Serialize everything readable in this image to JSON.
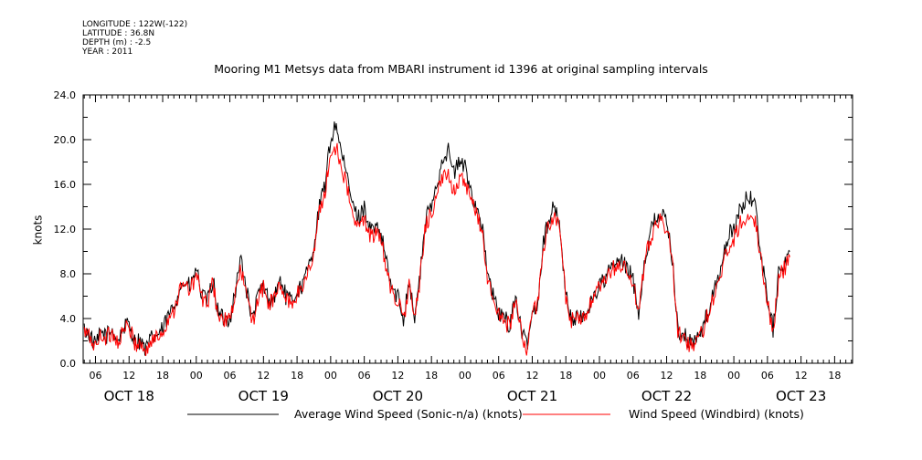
{
  "header": {
    "meta_lines": [
      "LONGITUDE : 122W(-122)",
      "LATITUDE : 36.8N",
      "DEPTH (m) : -2.5",
      "YEAR : 2011"
    ],
    "title": "Mooring M1 Metsys data from MBARI instrument id 1396 at original sampling intervals"
  },
  "chart_data": {
    "type": "line",
    "title": "Mooring M1 Metsys data from MBARI instrument id 1396 at original sampling intervals",
    "ylabel": "knots",
    "xlabel": "",
    "ylim": [
      0,
      24
    ],
    "y_ticks": [
      "0.0",
      "4.0",
      "8.0",
      "12.0",
      "16.0",
      "20.0",
      "24.0"
    ],
    "x_unit": "hours since OCT 18 00:00",
    "xlim": [
      3.8,
      141.2
    ],
    "x_tick_labels": [
      {
        "x": 6,
        "label": "06"
      },
      {
        "x": 12,
        "label": "12"
      },
      {
        "x": 18,
        "label": "18"
      },
      {
        "x": 24,
        "label": "00"
      },
      {
        "x": 30,
        "label": "06"
      },
      {
        "x": 36,
        "label": "12"
      },
      {
        "x": 42,
        "label": "18"
      },
      {
        "x": 48,
        "label": "00"
      },
      {
        "x": 54,
        "label": "06"
      },
      {
        "x": 60,
        "label": "12"
      },
      {
        "x": 66,
        "label": "18"
      },
      {
        "x": 72,
        "label": "00"
      },
      {
        "x": 78,
        "label": "06"
      },
      {
        "x": 84,
        "label": "12"
      },
      {
        "x": 90,
        "label": "18"
      },
      {
        "x": 96,
        "label": "00"
      },
      {
        "x": 102,
        "label": "06"
      },
      {
        "x": 108,
        "label": "12"
      },
      {
        "x": 114,
        "label": "18"
      },
      {
        "x": 120,
        "label": "00"
      },
      {
        "x": 126,
        "label": "06"
      },
      {
        "x": 132,
        "label": "12"
      },
      {
        "x": 138,
        "label": "18"
      }
    ],
    "date_labels": [
      {
        "x": 12,
        "label": "OCT 18"
      },
      {
        "x": 36,
        "label": "OCT 19"
      },
      {
        "x": 60,
        "label": "OCT 20"
      },
      {
        "x": 84,
        "label": "OCT 21"
      },
      {
        "x": 108,
        "label": "OCT 22"
      },
      {
        "x": 132,
        "label": "OCT 23"
      }
    ],
    "series": [
      {
        "name": "Average Wind Speed (Sonic-n/a) (knots)",
        "color": "#000000",
        "points": [
          [
            4,
            3.0
          ],
          [
            5,
            2.5
          ],
          [
            6,
            1.5
          ],
          [
            7,
            2.8
          ],
          [
            8,
            2.5
          ],
          [
            9,
            3.0
          ],
          [
            10,
            2.0
          ],
          [
            11,
            3.2
          ],
          [
            12,
            3.5
          ],
          [
            13,
            2.0
          ],
          [
            14,
            2.0
          ],
          [
            15,
            1.2
          ],
          [
            16,
            2.2
          ],
          [
            17,
            2.5
          ],
          [
            18,
            3.0
          ],
          [
            19,
            4.2
          ],
          [
            20,
            5.0
          ],
          [
            21,
            6.8
          ],
          [
            22,
            7.2
          ],
          [
            23,
            6.8
          ],
          [
            24,
            8.5
          ],
          [
            25,
            6.0
          ],
          [
            26,
            5.5
          ],
          [
            27,
            7.5
          ],
          [
            28,
            4.2
          ],
          [
            29,
            4.0
          ],
          [
            30,
            4.0
          ],
          [
            31,
            6.5
          ],
          [
            32,
            9.5
          ],
          [
            33,
            6.5
          ],
          [
            34,
            3.8
          ],
          [
            35,
            6.0
          ],
          [
            36,
            7.0
          ],
          [
            37,
            5.5
          ],
          [
            38,
            6.0
          ],
          [
            39,
            7.5
          ],
          [
            40,
            6.0
          ],
          [
            41,
            5.5
          ],
          [
            42,
            6.5
          ],
          [
            43,
            7.0
          ],
          [
            44,
            8.5
          ],
          [
            45,
            10.5
          ],
          [
            46,
            14.0
          ],
          [
            47,
            16.0
          ],
          [
            48,
            20.0
          ],
          [
            49,
            21.5
          ],
          [
            50,
            18.5
          ],
          [
            51,
            16.5
          ],
          [
            52,
            14.0
          ],
          [
            53,
            13.0
          ],
          [
            54,
            14.0
          ],
          [
            55,
            12.0
          ],
          [
            56,
            12.0
          ],
          [
            57,
            11.5
          ],
          [
            58,
            9.0
          ],
          [
            59,
            6.5
          ],
          [
            60,
            6.0
          ],
          [
            61,
            4.0
          ],
          [
            62,
            7.5
          ],
          [
            63,
            4.0
          ],
          [
            64,
            8.0
          ],
          [
            65,
            13.0
          ],
          [
            66,
            14.0
          ],
          [
            67,
            16.0
          ],
          [
            68,
            18.5
          ],
          [
            69,
            19.0
          ],
          [
            70,
            17.0
          ],
          [
            71,
            18.0
          ],
          [
            72,
            17.5
          ],
          [
            73,
            15.5
          ],
          [
            74,
            14.0
          ],
          [
            75,
            12.5
          ],
          [
            76,
            8.0
          ],
          [
            77,
            6.0
          ],
          [
            78,
            4.5
          ],
          [
            79,
            4.0
          ],
          [
            80,
            3.5
          ],
          [
            81,
            6.0
          ],
          [
            82,
            3.0
          ],
          [
            83,
            1.5
          ],
          [
            84,
            4.5
          ],
          [
            85,
            5.5
          ],
          [
            86,
            11.0
          ],
          [
            87,
            13.0
          ],
          [
            88,
            14.0
          ],
          [
            89,
            12.0
          ],
          [
            90,
            6.0
          ],
          [
            91,
            4.0
          ],
          [
            92,
            4.0
          ],
          [
            93,
            4.0
          ],
          [
            94,
            5.0
          ],
          [
            95,
            6.0
          ],
          [
            96,
            7.0
          ],
          [
            97,
            7.5
          ],
          [
            98,
            8.5
          ],
          [
            99,
            9.0
          ],
          [
            100,
            9.0
          ],
          [
            101,
            8.5
          ],
          [
            102,
            7.5
          ],
          [
            103,
            4.5
          ],
          [
            104,
            9.0
          ],
          [
            105,
            11.5
          ],
          [
            106,
            13.0
          ],
          [
            107,
            13.5
          ],
          [
            108,
            12.5
          ],
          [
            109,
            9.5
          ],
          [
            110,
            3.0
          ],
          [
            111,
            2.5
          ],
          [
            112,
            2.0
          ],
          [
            113,
            2.0
          ],
          [
            114,
            2.5
          ],
          [
            115,
            4.0
          ],
          [
            116,
            5.5
          ],
          [
            117,
            7.5
          ],
          [
            118,
            9.0
          ],
          [
            119,
            11.5
          ],
          [
            120,
            12.0
          ],
          [
            121,
            13.5
          ],
          [
            122,
            14.5
          ],
          [
            123,
            15.0
          ],
          [
            124,
            13.5
          ],
          [
            125,
            9.0
          ],
          [
            126,
            6.0
          ],
          [
            127,
            3.0
          ],
          [
            128,
            8.0
          ],
          [
            129,
            9.0
          ],
          [
            130,
            10.0
          ]
        ]
      },
      {
        "name": "Wind Speed (Windbird) (knots)",
        "color": "#ff0000",
        "points": [
          [
            4,
            2.8
          ],
          [
            5,
            2.3
          ],
          [
            6,
            1.4
          ],
          [
            7,
            2.6
          ],
          [
            8,
            2.3
          ],
          [
            9,
            2.8
          ],
          [
            10,
            1.8
          ],
          [
            11,
            3.0
          ],
          [
            12,
            3.2
          ],
          [
            13,
            1.8
          ],
          [
            14,
            1.8
          ],
          [
            15,
            1.0
          ],
          [
            16,
            2.0
          ],
          [
            17,
            2.3
          ],
          [
            18,
            2.8
          ],
          [
            19,
            4.0
          ],
          [
            20,
            4.8
          ],
          [
            21,
            6.5
          ],
          [
            22,
            7.0
          ],
          [
            23,
            6.5
          ],
          [
            24,
            8.0
          ],
          [
            25,
            5.8
          ],
          [
            26,
            5.3
          ],
          [
            27,
            7.2
          ],
          [
            28,
            4.0
          ],
          [
            29,
            3.8
          ],
          [
            30,
            3.8
          ],
          [
            31,
            6.2
          ],
          [
            32,
            8.5
          ],
          [
            33,
            6.0
          ],
          [
            34,
            3.5
          ],
          [
            35,
            5.8
          ],
          [
            36,
            6.7
          ],
          [
            37,
            5.3
          ],
          [
            38,
            5.8
          ],
          [
            39,
            7.0
          ],
          [
            40,
            5.7
          ],
          [
            41,
            5.3
          ],
          [
            42,
            6.2
          ],
          [
            43,
            6.8
          ],
          [
            44,
            8.2
          ],
          [
            45,
            10.0
          ],
          [
            46,
            13.5
          ],
          [
            47,
            15.5
          ],
          [
            48,
            18.5
          ],
          [
            49,
            19.5
          ],
          [
            50,
            17.5
          ],
          [
            51,
            15.5
          ],
          [
            52,
            13.0
          ],
          [
            53,
            12.0
          ],
          [
            54,
            13.0
          ],
          [
            55,
            11.5
          ],
          [
            56,
            11.5
          ],
          [
            57,
            11.0
          ],
          [
            58,
            8.5
          ],
          [
            59,
            6.2
          ],
          [
            60,
            5.7
          ],
          [
            61,
            3.8
          ],
          [
            62,
            7.0
          ],
          [
            63,
            3.8
          ],
          [
            64,
            7.7
          ],
          [
            65,
            12.5
          ],
          [
            66,
            13.5
          ],
          [
            67,
            15.0
          ],
          [
            68,
            16.5
          ],
          [
            69,
            17.0
          ],
          [
            70,
            15.5
          ],
          [
            71,
            16.5
          ],
          [
            72,
            16.0
          ],
          [
            73,
            14.5
          ],
          [
            74,
            13.5
          ],
          [
            75,
            12.0
          ],
          [
            76,
            7.7
          ],
          [
            77,
            5.7
          ],
          [
            78,
            4.3
          ],
          [
            79,
            3.8
          ],
          [
            80,
            3.3
          ],
          [
            81,
            5.7
          ],
          [
            82,
            2.8
          ],
          [
            83,
            1.3
          ],
          [
            84,
            4.3
          ],
          [
            85,
            5.3
          ],
          [
            86,
            10.5
          ],
          [
            87,
            12.5
          ],
          [
            88,
            13.3
          ],
          [
            89,
            11.5
          ],
          [
            90,
            5.7
          ],
          [
            91,
            3.8
          ],
          [
            92,
            3.8
          ],
          [
            93,
            3.8
          ],
          [
            94,
            4.8
          ],
          [
            95,
            5.8
          ],
          [
            96,
            6.7
          ],
          [
            97,
            7.2
          ],
          [
            98,
            8.2
          ],
          [
            99,
            8.7
          ],
          [
            100,
            8.7
          ],
          [
            101,
            8.2
          ],
          [
            102,
            7.2
          ],
          [
            103,
            4.3
          ],
          [
            104,
            8.7
          ],
          [
            105,
            11.0
          ],
          [
            106,
            12.5
          ],
          [
            107,
            13.0
          ],
          [
            108,
            12.0
          ],
          [
            109,
            9.0
          ],
          [
            110,
            2.8
          ],
          [
            111,
            2.3
          ],
          [
            112,
            1.8
          ],
          [
            113,
            1.8
          ],
          [
            114,
            2.3
          ],
          [
            115,
            3.8
          ],
          [
            116,
            5.3
          ],
          [
            117,
            7.2
          ],
          [
            118,
            8.5
          ],
          [
            119,
            10.5
          ],
          [
            120,
            11.0
          ],
          [
            121,
            12.5
          ],
          [
            122,
            13.0
          ],
          [
            123,
            13.5
          ],
          [
            124,
            12.5
          ],
          [
            125,
            8.5
          ],
          [
            126,
            5.7
          ],
          [
            127,
            2.5
          ],
          [
            128,
            7.7
          ],
          [
            129,
            8.5
          ],
          [
            130,
            9.5
          ]
        ]
      }
    ],
    "grid": false,
    "legend": "bottom"
  }
}
